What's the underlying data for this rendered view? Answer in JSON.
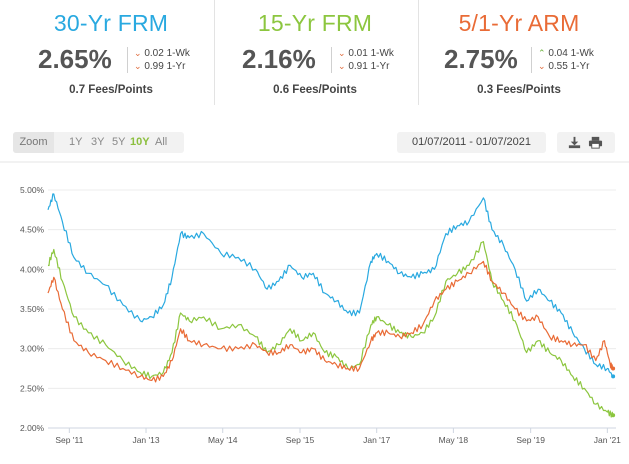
{
  "rates": [
    {
      "title": "30-Yr FRM",
      "color": "#29a9e0",
      "value": "2.65%",
      "wk_dir": "down",
      "wk": "0.02 1-Wk",
      "yr_dir": "down",
      "yr": "0.99 1-Yr",
      "fees": "0.7 Fees/Points"
    },
    {
      "title": "15-Yr FRM",
      "color": "#8cc63f",
      "value": "2.16%",
      "wk_dir": "down",
      "wk": "0.01 1-Wk",
      "yr_dir": "down",
      "yr": "0.91 1-Yr",
      "fees": "0.6 Fees/Points"
    },
    {
      "title": "5/1-Yr ARM",
      "color": "#e96b36",
      "value": "2.75%",
      "wk_dir": "up",
      "wk": "0.04 1-Wk",
      "yr_dir": "down",
      "yr": "0.55 1-Yr",
      "fees": "0.3 Fees/Points"
    }
  ],
  "controls": {
    "zoom_label": "Zoom",
    "zoom_buttons": [
      "1Y",
      "3Y",
      "5Y",
      "10Y",
      "All"
    ],
    "zoom_active": "10Y",
    "date_range": "01/07/2011 - 01/07/2021",
    "download_icon": "download-icon",
    "print_icon": "print-icon"
  },
  "chart_data": {
    "type": "line",
    "ylim": [
      2.0,
      5.0
    ],
    "xlim": [
      2011.3,
      2021.15
    ],
    "y_ticks": [
      "2.00%",
      "2.50%",
      "3.00%",
      "3.50%",
      "4.00%",
      "4.50%",
      "5.00%"
    ],
    "y_tick_values": [
      2.0,
      2.5,
      3.0,
      3.5,
      4.0,
      4.5,
      5.0
    ],
    "x_ticks": [
      "Sep '11",
      "Jan '13",
      "May '14",
      "Sep '15",
      "Jan '17",
      "May '18",
      "Sep '19",
      "Jan '21"
    ],
    "x_tick_values": [
      2011.67,
      2013.0,
      2014.33,
      2015.67,
      2017.0,
      2018.33,
      2019.67,
      2021.0
    ],
    "grid": true,
    "series": [
      {
        "color": "#29a9e0",
        "x": [
          2011.3,
          2011.4,
          2011.55,
          2011.75,
          2012.0,
          2012.3,
          2012.6,
          2012.9,
          2013.1,
          2013.3,
          2013.45,
          2013.6,
          2013.75,
          2014.0,
          2014.3,
          2014.6,
          2014.9,
          2015.1,
          2015.3,
          2015.5,
          2015.7,
          2015.9,
          2016.1,
          2016.3,
          2016.5,
          2016.7,
          2016.9,
          2017.0,
          2017.2,
          2017.4,
          2017.6,
          2017.8,
          2018.0,
          2018.2,
          2018.4,
          2018.6,
          2018.85,
          2019.0,
          2019.2,
          2019.4,
          2019.6,
          2019.8,
          2020.0,
          2020.2,
          2020.4,
          2020.6,
          2020.8,
          2021.0,
          2021.1
        ],
        "y": [
          4.75,
          4.95,
          4.6,
          4.15,
          3.95,
          3.8,
          3.55,
          3.35,
          3.4,
          3.55,
          3.9,
          4.45,
          4.4,
          4.45,
          4.2,
          4.15,
          4.0,
          3.75,
          3.85,
          4.05,
          3.9,
          3.95,
          3.7,
          3.6,
          3.45,
          3.45,
          4.1,
          4.2,
          4.1,
          3.95,
          3.9,
          3.95,
          4.0,
          4.45,
          4.55,
          4.6,
          4.9,
          4.5,
          4.3,
          4.0,
          3.6,
          3.75,
          3.6,
          3.45,
          3.2,
          3.0,
          2.8,
          2.75,
          2.65
        ]
      },
      {
        "color": "#8cc63f",
        "x": [
          2011.3,
          2011.4,
          2011.55,
          2011.75,
          2012.0,
          2012.3,
          2012.6,
          2012.9,
          2013.1,
          2013.3,
          2013.45,
          2013.6,
          2013.75,
          2014.0,
          2014.3,
          2014.6,
          2014.9,
          2015.1,
          2015.3,
          2015.5,
          2015.7,
          2015.9,
          2016.1,
          2016.3,
          2016.5,
          2016.7,
          2016.9,
          2017.0,
          2017.2,
          2017.4,
          2017.6,
          2017.8,
          2018.0,
          2018.2,
          2018.4,
          2018.6,
          2018.85,
          2019.0,
          2019.2,
          2019.4,
          2019.6,
          2019.8,
          2020.0,
          2020.2,
          2020.4,
          2020.6,
          2020.8,
          2021.0,
          2021.1
        ],
        "y": [
          4.05,
          4.25,
          3.85,
          3.4,
          3.2,
          3.05,
          2.85,
          2.7,
          2.65,
          2.7,
          2.95,
          3.45,
          3.35,
          3.4,
          3.25,
          3.3,
          3.15,
          2.95,
          3.05,
          3.25,
          3.1,
          3.2,
          2.95,
          2.9,
          2.75,
          2.8,
          3.3,
          3.4,
          3.3,
          3.2,
          3.15,
          3.2,
          3.4,
          3.85,
          3.95,
          4.05,
          4.35,
          3.85,
          3.6,
          3.35,
          2.95,
          3.1,
          2.95,
          2.85,
          2.65,
          2.5,
          2.3,
          2.2,
          2.16
        ]
      },
      {
        "color": "#e96b36",
        "x": [
          2011.3,
          2011.4,
          2011.55,
          2011.75,
          2012.0,
          2012.3,
          2012.6,
          2012.9,
          2013.1,
          2013.3,
          2013.45,
          2013.6,
          2013.75,
          2014.0,
          2014.3,
          2014.6,
          2014.9,
          2015.1,
          2015.3,
          2015.5,
          2015.7,
          2015.9,
          2016.1,
          2016.3,
          2016.5,
          2016.7,
          2016.9,
          2017.0,
          2017.2,
          2017.4,
          2017.6,
          2017.8,
          2018.0,
          2018.2,
          2018.4,
          2018.6,
          2018.85,
          2019.0,
          2019.2,
          2019.4,
          2019.6,
          2019.8,
          2020.0,
          2020.2,
          2020.4,
          2020.6,
          2020.8,
          2020.95,
          2021.05,
          2021.1
        ],
        "y": [
          3.7,
          3.9,
          3.5,
          3.1,
          2.95,
          2.85,
          2.75,
          2.65,
          2.6,
          2.65,
          2.85,
          3.25,
          3.1,
          3.05,
          3.0,
          3.0,
          3.05,
          2.95,
          2.95,
          3.05,
          2.95,
          3.0,
          2.85,
          2.8,
          2.75,
          2.75,
          3.1,
          3.2,
          3.2,
          3.15,
          3.2,
          3.3,
          3.6,
          3.75,
          3.85,
          3.95,
          4.1,
          3.85,
          3.7,
          3.5,
          3.35,
          3.4,
          3.15,
          3.1,
          3.05,
          3.05,
          2.85,
          3.1,
          2.8,
          2.75
        ]
      }
    ]
  }
}
